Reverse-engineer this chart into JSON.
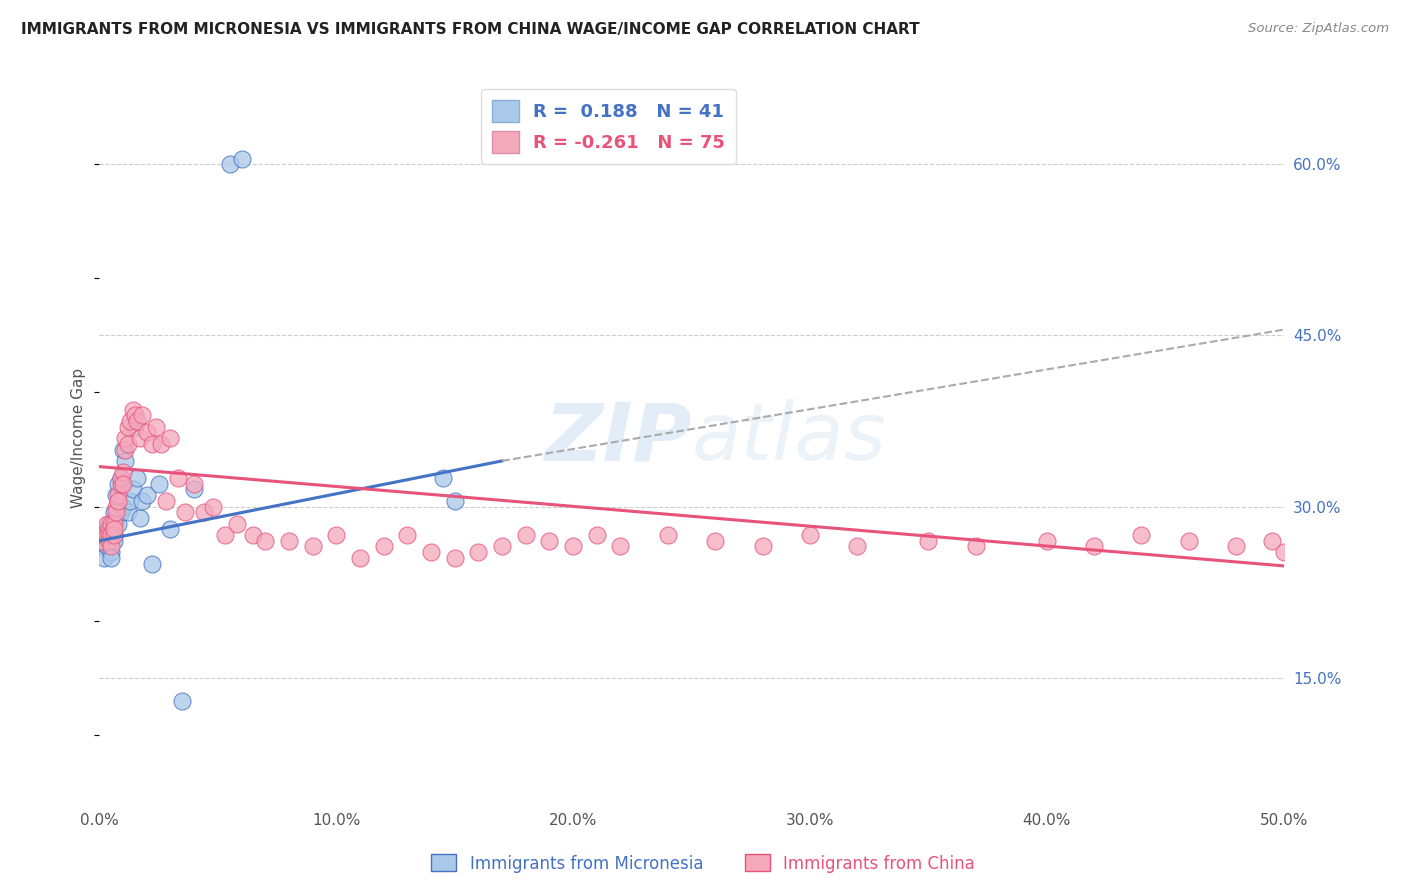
{
  "title": "IMMIGRANTS FROM MICRONESIA VS IMMIGRANTS FROM CHINA WAGE/INCOME GAP CORRELATION CHART",
  "source": "Source: ZipAtlas.com",
  "ylabel": "Wage/Income Gap",
  "xlim": [
    0.0,
    0.5
  ],
  "ylim": [
    0.04,
    0.68
  ],
  "xticks": [
    0.0,
    0.1,
    0.2,
    0.3,
    0.4,
    0.5
  ],
  "xticklabels": [
    "0.0%",
    "10.0%",
    "20.0%",
    "30.0%",
    "40.0%",
    "50.0%"
  ],
  "yticks": [
    0.15,
    0.3,
    0.45,
    0.6
  ],
  "yticklabels": [
    "15.0%",
    "30.0%",
    "45.0%",
    "60.0%"
  ],
  "R_micronesia": 0.188,
  "N_micronesia": 41,
  "R_china": -0.261,
  "N_china": 75,
  "color_micronesia": "#aac8e8",
  "color_china": "#f4a8bc",
  "color_line_micronesia": "#4472c4",
  "color_line_china": "#e8537a",
  "watermark": "ZIPatlas",
  "micronesia_x": [
    0.001,
    0.002,
    0.002,
    0.003,
    0.003,
    0.003,
    0.004,
    0.004,
    0.004,
    0.005,
    0.005,
    0.005,
    0.006,
    0.006,
    0.006,
    0.007,
    0.007,
    0.008,
    0.008,
    0.009,
    0.009,
    0.01,
    0.01,
    0.011,
    0.012,
    0.013,
    0.014,
    0.015,
    0.016,
    0.017,
    0.018,
    0.02,
    0.022,
    0.025,
    0.03,
    0.035,
    0.04,
    0.055,
    0.06,
    0.145,
    0.15
  ],
  "micronesia_y": [
    0.265,
    0.255,
    0.27,
    0.275,
    0.265,
    0.28,
    0.27,
    0.275,
    0.285,
    0.28,
    0.26,
    0.255,
    0.295,
    0.275,
    0.27,
    0.31,
    0.29,
    0.32,
    0.285,
    0.325,
    0.295,
    0.35,
    0.3,
    0.34,
    0.295,
    0.305,
    0.315,
    0.37,
    0.325,
    0.29,
    0.305,
    0.31,
    0.25,
    0.32,
    0.28,
    0.13,
    0.315,
    0.6,
    0.605,
    0.325,
    0.305
  ],
  "china_x": [
    0.001,
    0.002,
    0.003,
    0.003,
    0.004,
    0.004,
    0.004,
    0.005,
    0.005,
    0.005,
    0.006,
    0.006,
    0.006,
    0.007,
    0.007,
    0.008,
    0.008,
    0.009,
    0.009,
    0.01,
    0.01,
    0.011,
    0.011,
    0.012,
    0.012,
    0.013,
    0.014,
    0.015,
    0.016,
    0.017,
    0.018,
    0.02,
    0.022,
    0.024,
    0.026,
    0.028,
    0.03,
    0.033,
    0.036,
    0.04,
    0.044,
    0.048,
    0.053,
    0.058,
    0.065,
    0.07,
    0.08,
    0.09,
    0.1,
    0.11,
    0.12,
    0.13,
    0.14,
    0.15,
    0.16,
    0.17,
    0.18,
    0.19,
    0.2,
    0.21,
    0.22,
    0.24,
    0.26,
    0.28,
    0.3,
    0.32,
    0.35,
    0.37,
    0.4,
    0.42,
    0.44,
    0.46,
    0.48,
    0.495,
    0.5
  ],
  "china_y": [
    0.27,
    0.275,
    0.275,
    0.285,
    0.28,
    0.275,
    0.27,
    0.285,
    0.275,
    0.265,
    0.285,
    0.275,
    0.28,
    0.3,
    0.295,
    0.31,
    0.305,
    0.32,
    0.325,
    0.33,
    0.32,
    0.35,
    0.36,
    0.355,
    0.37,
    0.375,
    0.385,
    0.38,
    0.375,
    0.36,
    0.38,
    0.365,
    0.355,
    0.37,
    0.355,
    0.305,
    0.36,
    0.325,
    0.295,
    0.32,
    0.295,
    0.3,
    0.275,
    0.285,
    0.275,
    0.27,
    0.27,
    0.265,
    0.275,
    0.255,
    0.265,
    0.275,
    0.26,
    0.255,
    0.26,
    0.265,
    0.275,
    0.27,
    0.265,
    0.275,
    0.265,
    0.275,
    0.27,
    0.265,
    0.275,
    0.265,
    0.27,
    0.265,
    0.27,
    0.265,
    0.275,
    0.27,
    0.265,
    0.27,
    0.26
  ],
  "line_m_x0": 0.0,
  "line_m_y0": 0.27,
  "line_m_x1": 0.17,
  "line_m_y1": 0.34,
  "line_m_xdash_start": 0.17,
  "line_m_xdash_end": 0.5,
  "line_m_ydash_end": 0.455,
  "line_c_x0": 0.0,
  "line_c_y0": 0.335,
  "line_c_x1": 0.5,
  "line_c_y1": 0.248
}
